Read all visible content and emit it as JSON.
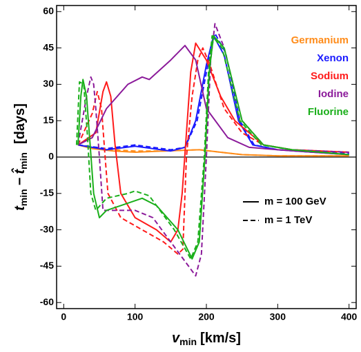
{
  "chart_data": {
    "type": "line",
    "x_label": {
      "main": "v",
      "sub": "min",
      "unit": "[km/s]"
    },
    "y_label": {
      "main1": "t",
      "sub1": "min",
      "sep": "−",
      "main2": "t̂",
      "sub2": "min",
      "unit": "[days]"
    },
    "xlim": [
      -10,
      410
    ],
    "ylim": [
      -62.5,
      62.5
    ],
    "xticks": [
      0,
      100,
      200,
      300,
      400
    ],
    "yticks": [
      -60,
      -45,
      -30,
      -15,
      0,
      15,
      30,
      45,
      60
    ],
    "legend": "upper right",
    "line_styles": [
      {
        "label": "m = 100 GeV",
        "style": "solid"
      },
      {
        "label": "m = 1 TeV",
        "style": "dashed"
      }
    ],
    "series": [
      {
        "name": "Germanium",
        "color": "#ff8c1a",
        "lines": [
          {
            "style": "solid",
            "x": [
              20,
              40,
              70,
              100,
              140,
              190,
              220,
              250,
              300,
              350,
              400
            ],
            "values": [
              5,
              3.5,
              2.5,
              2,
              2.5,
              3,
              2,
              1,
              0.5,
              0.5,
              0.5
            ]
          },
          {
            "style": "dashed",
            "x": [
              20,
              40,
              70,
              100,
              140,
              190,
              220,
              250,
              300,
              350,
              400
            ],
            "values": [
              5,
              4,
              3,
              2.5,
              2.5,
              3,
              2,
              1,
              0.5,
              0.5,
              0.5
            ]
          }
        ]
      },
      {
        "name": "Xenon",
        "color": "#1a1aff",
        "lines": [
          {
            "style": "solid",
            "x": [
              20,
              60,
              100,
              150,
              170,
              185,
              200,
              210,
              225,
              245,
              265,
              300,
              350,
              400
            ],
            "values": [
              5,
              3,
              4.5,
              2.5,
              4,
              15,
              38,
              50,
              42,
              15,
              5,
              3,
              2,
              1
            ]
          },
          {
            "style": "dashed",
            "x": [
              20,
              60,
              100,
              150,
              170,
              187,
              202,
              212,
              227,
              247,
              267,
              300,
              350,
              400
            ],
            "values": [
              5,
              3.5,
              5,
              3,
              4,
              15,
              38,
              51,
              43,
              15,
              5,
              3,
              2,
              1.5
            ]
          }
        ]
      },
      {
        "name": "Sodium",
        "color": "#ff1a1a",
        "lines": [
          {
            "style": "solid",
            "x": [
              20,
              45,
              55,
              60,
              66,
              72,
              80,
              100,
              130,
              150,
              160,
              166,
              172,
              178,
              185,
              200,
              220,
              240,
              280,
              320,
              400
            ],
            "values": [
              5,
              10,
              27,
              31,
              25,
              5,
              -15,
              -25,
              -30,
              -35,
              -30,
              -15,
              10,
              35,
              47,
              40,
              25,
              15,
              5,
              3,
              2
            ]
          },
          {
            "style": "dashed",
            "x": [
              20,
              40,
              47,
              53,
              58,
              62,
              80,
              110,
              140,
              160,
              167,
              172,
              180,
              188,
              195,
              205,
              225,
              250,
              280,
              320,
              400
            ],
            "values": [
              5,
              18,
              27,
              20,
              0,
              -15,
              -25,
              -30,
              -35,
              -40,
              -38,
              0,
              25,
              40,
              45,
              38,
              20,
              10,
              5,
              3,
              2
            ]
          }
        ]
      },
      {
        "name": "Iodine",
        "color": "#8b1a9a",
        "lines": [
          {
            "style": "solid",
            "x": [
              20,
              40,
              60,
              90,
              110,
              120,
              150,
              170,
              185,
              200,
              230,
              260,
              300,
              350,
              400
            ],
            "values": [
              5,
              8,
              20,
              30,
              33,
              32,
              40,
              46,
              40,
              20,
              8,
              4,
              3,
              2,
              1
            ]
          },
          {
            "style": "dashed",
            "x": [
              20,
              32,
              38,
              42,
              45,
              50,
              55,
              75,
              100,
              125,
              150,
              175,
              185,
              193,
              200,
              206,
              212,
              225,
              250,
              280,
              320,
              400
            ],
            "values": [
              5,
              25,
              33,
              30,
              20,
              0,
              -22,
              -22,
              -22,
              -25,
              -35,
              -45,
              -49,
              -40,
              0,
              40,
              55,
              45,
              15,
              5,
              3,
              2
            ]
          }
        ]
      },
      {
        "name": "Fluorine",
        "color": "#1aaf1a",
        "lines": [
          {
            "style": "solid",
            "x": [
              20,
              24,
              27,
              32,
              37,
              42,
              50,
              60,
              80,
              110,
              130,
              160,
              180,
              190,
              198,
              204,
              210,
              225,
              250,
              280,
              320,
              400
            ],
            "values": [
              5,
              25,
              32,
              25,
              5,
              -15,
              -25,
              -22,
              -20,
              -17,
              -20,
              -30,
              -42,
              -35,
              0,
              35,
              50,
              45,
              15,
              5,
              3,
              1
            ]
          },
          {
            "style": "dashed",
            "x": [
              18,
              22,
              28,
              33,
              38,
              45,
              60,
              90,
              100,
              120,
              155,
              178,
              188,
              197,
              203,
              208,
              222,
              247,
              277,
              320,
              400
            ],
            "values": [
              5,
              31,
              30,
              10,
              -15,
              -22,
              -17,
              -15,
              -14,
              -16,
              -30,
              -42,
              -35,
              0,
              35,
              50,
              45,
              15,
              5,
              3,
              1
            ]
          }
        ]
      }
    ]
  }
}
